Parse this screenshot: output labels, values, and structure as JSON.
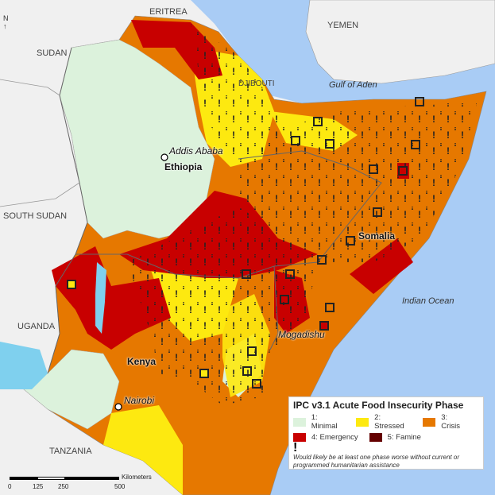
{
  "labels": {
    "countries": [
      "ERITREA",
      "YEMEN",
      "SUDAN",
      "DJIBOUTI",
      "SOUTH SUDAN",
      "UGANDA",
      "TANZANIA",
      "Ethiopia",
      "Kenya",
      "Somalia"
    ],
    "seas": [
      "Gulf of Aden",
      "Indian Ocean"
    ],
    "cities": [
      "Addis Ababa",
      "Nairobi",
      "Mogadishu"
    ]
  },
  "legend": {
    "title": "IPC v3.1 Acute Food Insecurity Phase",
    "phases": [
      {
        "label": "1: Minimal",
        "color": "#dcf2dc"
      },
      {
        "label": "2: Stressed",
        "color": "#fde910"
      },
      {
        "label": "3: Crisis",
        "color": "#e67800"
      },
      {
        "label": "4: Emergency",
        "color": "#c80000"
      },
      {
        "label": "5: Famine",
        "color": "#640000"
      }
    ],
    "excl_symbol": "!",
    "note": "Would likely be at least one phase worse without current or programmed humanitarian assistance"
  },
  "scale": {
    "unit": "Kilometers",
    "ticks": [
      "0",
      "125",
      "250",
      "500"
    ]
  },
  "colors": {
    "sea": "#a9ccf5",
    "land_outside": "#f0f0f0",
    "lake": "#7fd0ee"
  }
}
